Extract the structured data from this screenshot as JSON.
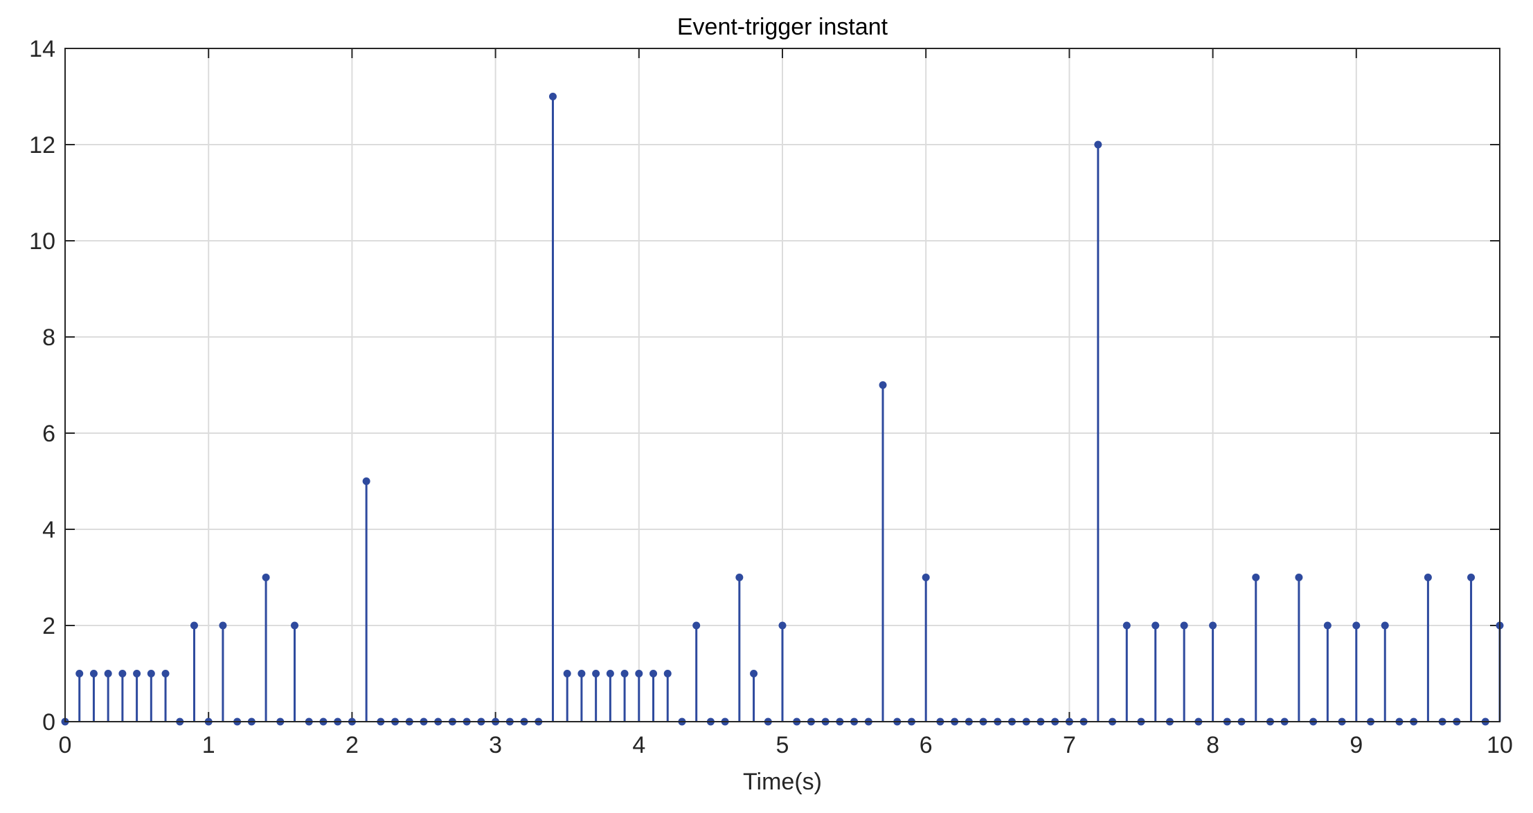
{
  "chart_data": {
    "type": "stem",
    "title": "Event-trigger instant",
    "xlabel": "Time(s)",
    "ylabel": "",
    "xlim": [
      0,
      10
    ],
    "ylim": [
      0,
      14
    ],
    "xticks": [
      0,
      1,
      2,
      3,
      4,
      5,
      6,
      7,
      8,
      9,
      10
    ],
    "xtick_labels": [
      "0",
      "1",
      "2",
      "3",
      "4",
      "5",
      "6",
      "7",
      "8",
      "9",
      "10"
    ],
    "yticks": [
      0,
      2,
      4,
      6,
      8,
      10,
      12,
      14
    ],
    "ytick_labels": [
      "0",
      "2",
      "4",
      "6",
      "8",
      "10",
      "12",
      "14"
    ],
    "grid": true,
    "color": "#2E4A9E",
    "x": [
      0,
      0.1,
      0.2,
      0.3,
      0.4,
      0.5,
      0.6,
      0.7,
      0.8,
      0.9,
      1.0,
      1.1,
      1.2,
      1.3,
      1.4,
      1.5,
      1.6,
      1.7,
      1.8,
      1.9,
      2.0,
      2.1,
      2.2,
      2.3,
      2.4,
      2.5,
      2.6,
      2.7,
      2.8,
      2.9,
      3.0,
      3.1,
      3.2,
      3.3,
      3.4,
      3.5,
      3.6,
      3.7,
      3.8,
      3.9,
      4.0,
      4.1,
      4.2,
      4.3,
      4.4,
      4.5,
      4.6,
      4.7,
      4.8,
      4.9,
      5.0,
      5.1,
      5.2,
      5.3,
      5.4,
      5.5,
      5.6,
      5.7,
      5.8,
      5.9,
      6.0,
      6.1,
      6.2,
      6.3,
      6.4,
      6.5,
      6.6,
      6.7,
      6.8,
      6.9,
      7.0,
      7.1,
      7.2,
      7.3,
      7.4,
      7.5,
      7.6,
      7.7,
      7.8,
      7.9,
      8.0,
      8.1,
      8.2,
      8.3,
      8.4,
      8.5,
      8.6,
      8.7,
      8.8,
      8.9,
      9.0,
      9.1,
      9.2,
      9.3,
      9.4,
      9.5,
      9.6,
      9.7,
      9.8,
      9.9,
      10.0
    ],
    "y": [
      0,
      1,
      1,
      1,
      1,
      1,
      1,
      1,
      0,
      2,
      0,
      2,
      0,
      0,
      3,
      0,
      2,
      0,
      0,
      0,
      0,
      5,
      0,
      0,
      0,
      0,
      0,
      0,
      0,
      0,
      0,
      0,
      0,
      0,
      13,
      1,
      1,
      1,
      1,
      1,
      1,
      1,
      1,
      0,
      2,
      0,
      0,
      3,
      1,
      0,
      2,
      0,
      0,
      0,
      0,
      0,
      0,
      7,
      0,
      0,
      3,
      0,
      0,
      0,
      0,
      0,
      0,
      0,
      0,
      0,
      0,
      0,
      12,
      0,
      2,
      0,
      2,
      0,
      2,
      0,
      2,
      0,
      0,
      3,
      0,
      0,
      3,
      0,
      2,
      0,
      2,
      0,
      2,
      0,
      0,
      3,
      0,
      0,
      3,
      0,
      2
    ]
  }
}
